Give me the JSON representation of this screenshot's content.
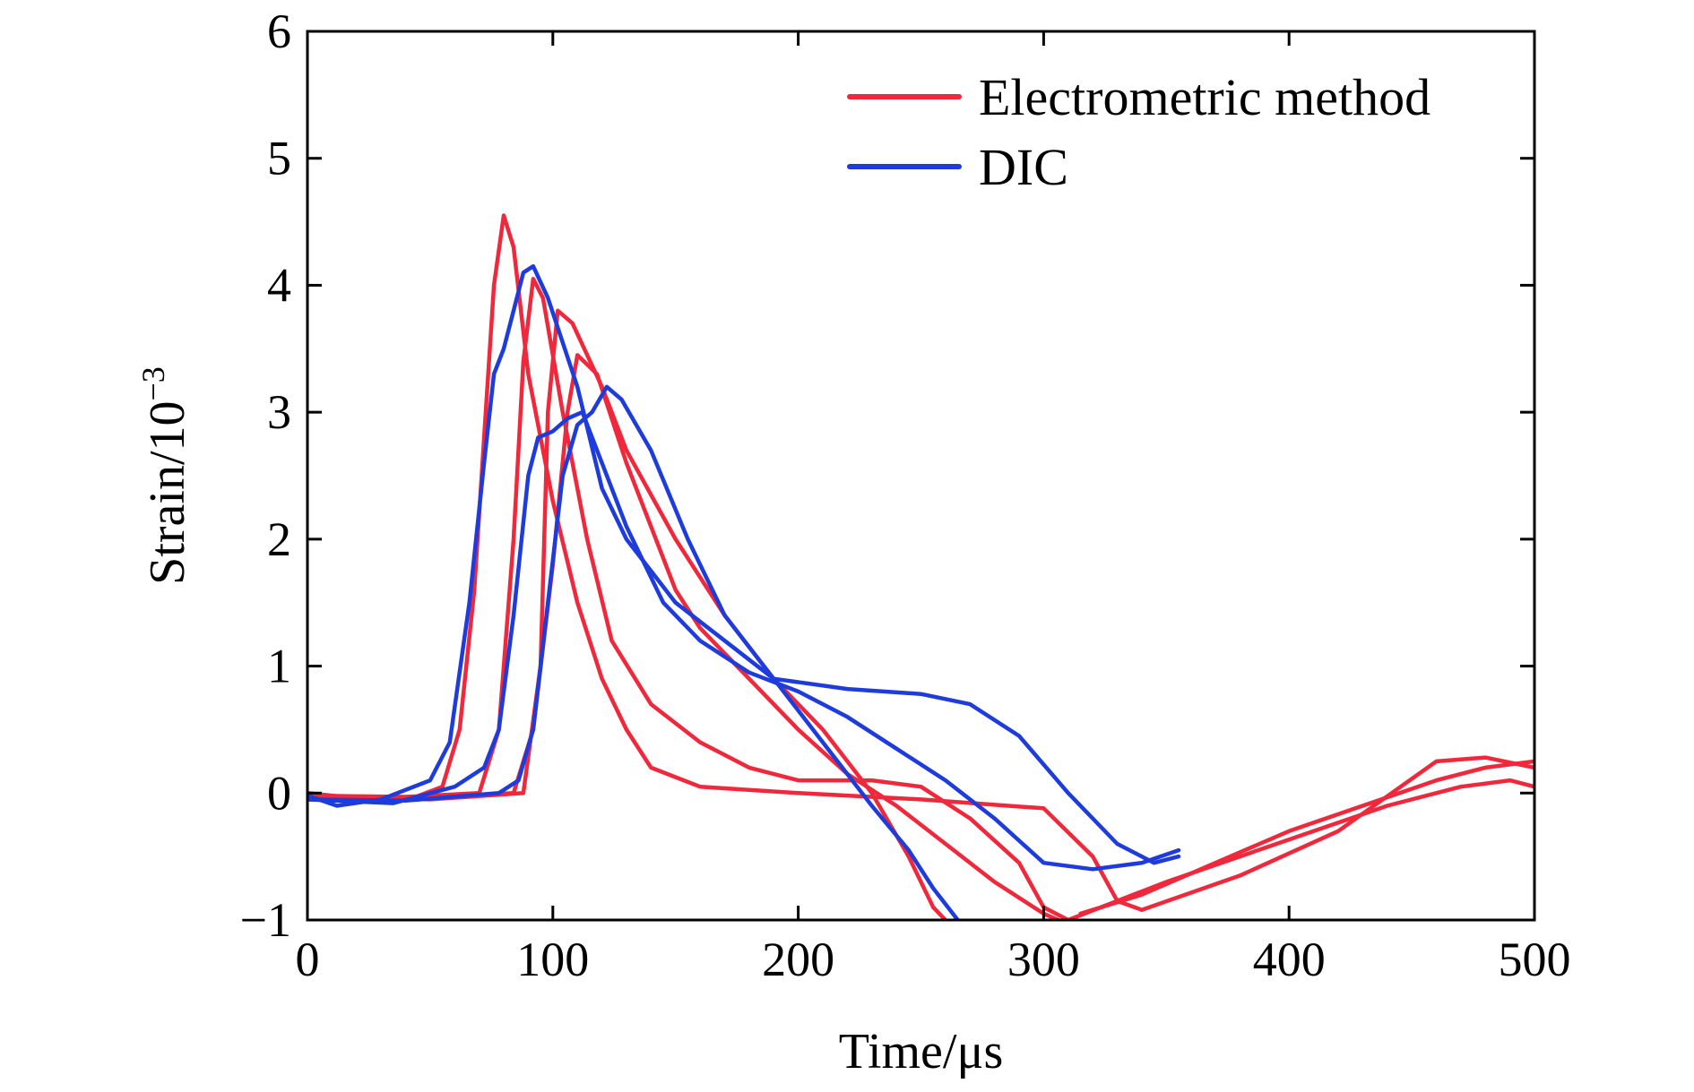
{
  "chart_data": {
    "type": "line",
    "title": "",
    "xlabel": "Time/μs",
    "ylabel": "Strain/10",
    "ylabel_exponent": "−3",
    "xlim": [
      0,
      500
    ],
    "ylim": [
      -1,
      6
    ],
    "x_ticks": [
      0,
      100,
      200,
      300,
      400,
      500
    ],
    "x_tick_labels": [
      "0",
      "100",
      "200",
      "300",
      "400",
      "500"
    ],
    "y_ticks": [
      -1,
      0,
      1,
      2,
      3,
      4,
      5,
      6
    ],
    "y_tick_labels": [
      "−1",
      "0",
      "1",
      "2",
      "3",
      "4",
      "5",
      "6"
    ],
    "grid": false,
    "legend_position": "top-right",
    "legend": [
      {
        "label": "Electrometric method",
        "color": "#f0283c"
      },
      {
        "label": "DIC",
        "color": "#1e3cdc"
      }
    ],
    "series": [
      {
        "group": "Electrometric method",
        "color": "#f0283c",
        "points": [
          [
            0,
            0.0
          ],
          [
            20,
            -0.04
          ],
          [
            40,
            -0.06
          ],
          [
            55,
            0.05
          ],
          [
            62,
            0.5
          ],
          [
            68,
            1.6
          ],
          [
            72,
            2.8
          ],
          [
            76,
            4.0
          ],
          [
            80,
            4.55
          ],
          [
            84,
            4.3
          ],
          [
            90,
            3.3
          ],
          [
            100,
            2.3
          ],
          [
            110,
            1.5
          ],
          [
            120,
            0.9
          ],
          [
            130,
            0.5
          ],
          [
            140,
            0.2
          ],
          [
            160,
            0.05
          ],
          [
            200,
            0.0
          ],
          [
            250,
            -0.05
          ],
          [
            300,
            -0.12
          ],
          [
            320,
            -0.5
          ],
          [
            330,
            -0.85
          ],
          [
            340,
            -0.92
          ],
          [
            380,
            -0.65
          ],
          [
            420,
            -0.3
          ],
          [
            460,
            0.25
          ],
          [
            480,
            0.28
          ],
          [
            500,
            0.2
          ]
        ]
      },
      {
        "group": "Electrometric method",
        "color": "#f0283c",
        "points": [
          [
            0,
            -0.02
          ],
          [
            40,
            -0.03
          ],
          [
            70,
            0.0
          ],
          [
            78,
            0.5
          ],
          [
            84,
            2.0
          ],
          [
            88,
            3.4
          ],
          [
            92,
            4.05
          ],
          [
            96,
            3.9
          ],
          [
            104,
            3.0
          ],
          [
            114,
            2.0
          ],
          [
            124,
            1.2
          ],
          [
            140,
            0.7
          ],
          [
            160,
            0.4
          ],
          [
            180,
            0.2
          ],
          [
            200,
            0.1
          ],
          [
            230,
            0.1
          ],
          [
            250,
            0.05
          ],
          [
            270,
            -0.2
          ],
          [
            290,
            -0.55
          ],
          [
            300,
            -0.9
          ],
          [
            310,
            -1.0
          ]
        ]
      },
      {
        "group": "Electrometric method",
        "color": "#f0283c",
        "points": [
          [
            0,
            -0.05
          ],
          [
            50,
            -0.04
          ],
          [
            84,
            0.0
          ],
          [
            92,
            0.5
          ],
          [
            100,
            1.8
          ],
          [
            106,
            3.0
          ],
          [
            110,
            3.45
          ],
          [
            118,
            3.3
          ],
          [
            130,
            2.6
          ],
          [
            140,
            2.1
          ],
          [
            150,
            1.6
          ],
          [
            160,
            1.3
          ],
          [
            180,
            0.9
          ],
          [
            200,
            0.5
          ],
          [
            220,
            0.15
          ],
          [
            240,
            -0.1
          ],
          [
            260,
            -0.4
          ],
          [
            280,
            -0.7
          ],
          [
            300,
            -0.95
          ],
          [
            306,
            -1.0
          ]
        ]
      },
      {
        "group": "Electrometric method",
        "color": "#f0283c",
        "points": [
          [
            0,
            -0.03
          ],
          [
            50,
            -0.05
          ],
          [
            88,
            0.0
          ],
          [
            95,
            1.0
          ],
          [
            98,
            3.0
          ],
          [
            102,
            3.8
          ],
          [
            108,
            3.7
          ],
          [
            120,
            3.2
          ],
          [
            130,
            2.7
          ],
          [
            150,
            2.0
          ],
          [
            170,
            1.4
          ],
          [
            190,
            0.9
          ],
          [
            210,
            0.5
          ],
          [
            230,
            0.0
          ],
          [
            245,
            -0.5
          ],
          [
            255,
            -0.9
          ],
          [
            260,
            -1.0
          ]
        ]
      },
      {
        "group": "Electrometric method",
        "color": "#f0283c",
        "points": [
          [
            310,
            -1.0
          ],
          [
            330,
            -0.85
          ],
          [
            350,
            -0.7
          ],
          [
            380,
            -0.5
          ],
          [
            410,
            -0.3
          ],
          [
            440,
            -0.1
          ],
          [
            470,
            0.05
          ],
          [
            490,
            0.1
          ],
          [
            500,
            0.05
          ]
        ]
      },
      {
        "group": "Electrometric method",
        "color": "#f0283c",
        "points": [
          [
            315,
            -0.95
          ],
          [
            340,
            -0.8
          ],
          [
            370,
            -0.55
          ],
          [
            400,
            -0.3
          ],
          [
            430,
            -0.1
          ],
          [
            460,
            0.1
          ],
          [
            480,
            0.2
          ],
          [
            500,
            0.25
          ]
        ]
      },
      {
        "group": "DIC",
        "color": "#1e3cdc",
        "points": [
          [
            0,
            -0.02
          ],
          [
            12,
            -0.1
          ],
          [
            30,
            -0.05
          ],
          [
            50,
            0.1
          ],
          [
            58,
            0.4
          ],
          [
            66,
            1.5
          ],
          [
            72,
            2.6
          ],
          [
            76,
            3.3
          ],
          [
            80,
            3.5
          ],
          [
            84,
            3.8
          ],
          [
            88,
            4.1
          ],
          [
            92,
            4.15
          ],
          [
            98,
            3.9
          ],
          [
            110,
            3.2
          ],
          [
            120,
            2.4
          ],
          [
            130,
            2.0
          ],
          [
            150,
            1.5
          ],
          [
            170,
            1.2
          ],
          [
            190,
            0.9
          ],
          [
            220,
            0.82
          ],
          [
            250,
            0.78
          ],
          [
            270,
            0.7
          ],
          [
            290,
            0.45
          ],
          [
            310,
            0.0
          ],
          [
            330,
            -0.4
          ],
          [
            345,
            -0.55
          ],
          [
            355,
            -0.5
          ]
        ]
      },
      {
        "group": "DIC",
        "color": "#1e3cdc",
        "points": [
          [
            0,
            -0.05
          ],
          [
            35,
            -0.08
          ],
          [
            60,
            0.05
          ],
          [
            72,
            0.2
          ],
          [
            78,
            0.5
          ],
          [
            84,
            1.4
          ],
          [
            90,
            2.5
          ],
          [
            94,
            2.8
          ],
          [
            100,
            2.85
          ],
          [
            106,
            2.95
          ],
          [
            112,
            3.0
          ],
          [
            120,
            2.6
          ],
          [
            130,
            2.1
          ],
          [
            145,
            1.5
          ],
          [
            160,
            1.2
          ],
          [
            180,
            0.95
          ],
          [
            200,
            0.8
          ],
          [
            220,
            0.6
          ],
          [
            240,
            0.35
          ],
          [
            260,
            0.1
          ],
          [
            280,
            -0.2
          ],
          [
            300,
            -0.55
          ],
          [
            320,
            -0.6
          ],
          [
            340,
            -0.55
          ],
          [
            355,
            -0.45
          ]
        ]
      },
      {
        "group": "DIC",
        "color": "#1e3cdc",
        "points": [
          [
            0,
            -0.05
          ],
          [
            40,
            -0.06
          ],
          [
            78,
            0.0
          ],
          [
            86,
            0.1
          ],
          [
            92,
            0.5
          ],
          [
            98,
            1.5
          ],
          [
            104,
            2.5
          ],
          [
            110,
            2.9
          ],
          [
            116,
            3.0
          ],
          [
            122,
            3.2
          ],
          [
            128,
            3.1
          ],
          [
            140,
            2.7
          ],
          [
            155,
            2.0
          ],
          [
            170,
            1.4
          ],
          [
            190,
            0.9
          ],
          [
            210,
            0.4
          ],
          [
            230,
            -0.1
          ],
          [
            245,
            -0.45
          ],
          [
            255,
            -0.75
          ],
          [
            265,
            -1.0
          ]
        ]
      }
    ]
  }
}
